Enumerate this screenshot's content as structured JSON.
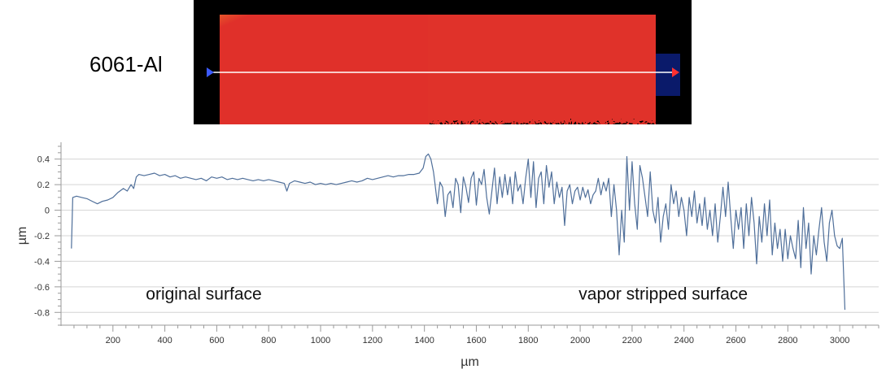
{
  "sample_label": "6061-Al",
  "heatmap": {
    "slice_label": "Sli",
    "colors": {
      "red": "#e0302a",
      "orange": "#f29b28",
      "yellow": "#e9e42e",
      "green": "#31b54a",
      "cyan": "#2fb7c9",
      "blue": "#1d53c8",
      "marker_left": "#3d5bff",
      "marker_right": "#ff3030",
      "slice_line": "#ffffff"
    }
  },
  "chart_data": {
    "type": "line",
    "xlabel": "µm",
    "ylabel": "µm",
    "xlim": [
      0,
      3150
    ],
    "ylim": [
      -0.9,
      0.5
    ],
    "grid": true,
    "line_color": "#4f6f9a",
    "x_ticks": [
      "200",
      "400",
      "600",
      "800",
      "1000",
      "1200",
      "1400",
      "1600",
      "1800",
      "2000",
      "2200",
      "2400",
      "2600",
      "2800",
      "3000"
    ],
    "y_ticks": [
      "0.4",
      "0.2",
      "0",
      "-0.2",
      "-0.4",
      "-0.6",
      "-0.8"
    ],
    "annotations": [
      {
        "text": "original surface",
        "x": 550,
        "y": -0.7
      },
      {
        "text": "vapor stripped surface",
        "x": 2320,
        "y": -0.7
      }
    ],
    "series": [
      {
        "values": [
          [
            40,
            -0.3
          ],
          [
            45,
            0.1
          ],
          [
            60,
            0.11
          ],
          [
            80,
            0.1
          ],
          [
            100,
            0.09
          ],
          [
            120,
            0.07
          ],
          [
            140,
            0.05
          ],
          [
            160,
            0.07
          ],
          [
            180,
            0.08
          ],
          [
            200,
            0.1
          ],
          [
            220,
            0.14
          ],
          [
            240,
            0.17
          ],
          [
            255,
            0.15
          ],
          [
            270,
            0.2
          ],
          [
            280,
            0.17
          ],
          [
            290,
            0.26
          ],
          [
            300,
            0.28
          ],
          [
            320,
            0.27
          ],
          [
            340,
            0.28
          ],
          [
            360,
            0.29
          ],
          [
            380,
            0.27
          ],
          [
            400,
            0.28
          ],
          [
            420,
            0.26
          ],
          [
            440,
            0.27
          ],
          [
            460,
            0.25
          ],
          [
            480,
            0.26
          ],
          [
            500,
            0.25
          ],
          [
            520,
            0.24
          ],
          [
            540,
            0.25
          ],
          [
            560,
            0.23
          ],
          [
            580,
            0.26
          ],
          [
            600,
            0.25
          ],
          [
            620,
            0.26
          ],
          [
            640,
            0.24
          ],
          [
            660,
            0.25
          ],
          [
            680,
            0.24
          ],
          [
            700,
            0.25
          ],
          [
            720,
            0.24
          ],
          [
            740,
            0.23
          ],
          [
            760,
            0.24
          ],
          [
            780,
            0.23
          ],
          [
            800,
            0.24
          ],
          [
            820,
            0.23
          ],
          [
            840,
            0.22
          ],
          [
            860,
            0.21
          ],
          [
            870,
            0.15
          ],
          [
            880,
            0.21
          ],
          [
            900,
            0.23
          ],
          [
            920,
            0.22
          ],
          [
            940,
            0.21
          ],
          [
            960,
            0.22
          ],
          [
            980,
            0.2
          ],
          [
            1000,
            0.21
          ],
          [
            1020,
            0.2
          ],
          [
            1040,
            0.21
          ],
          [
            1060,
            0.2
          ],
          [
            1080,
            0.21
          ],
          [
            1100,
            0.22
          ],
          [
            1120,
            0.23
          ],
          [
            1140,
            0.22
          ],
          [
            1160,
            0.23
          ],
          [
            1180,
            0.25
          ],
          [
            1200,
            0.24
          ],
          [
            1220,
            0.25
          ],
          [
            1240,
            0.26
          ],
          [
            1260,
            0.27
          ],
          [
            1280,
            0.26
          ],
          [
            1300,
            0.27
          ],
          [
            1320,
            0.27
          ],
          [
            1340,
            0.28
          ],
          [
            1360,
            0.28
          ],
          [
            1380,
            0.29
          ],
          [
            1395,
            0.33
          ],
          [
            1405,
            0.42
          ],
          [
            1415,
            0.44
          ],
          [
            1425,
            0.4
          ],
          [
            1435,
            0.3
          ],
          [
            1440,
            0.22
          ],
          [
            1450,
            0.05
          ],
          [
            1460,
            0.22
          ],
          [
            1470,
            0.18
          ],
          [
            1480,
            -0.05
          ],
          [
            1490,
            0.12
          ],
          [
            1500,
            0.15
          ],
          [
            1510,
            0.02
          ],
          [
            1520,
            0.25
          ],
          [
            1530,
            0.2
          ],
          [
            1540,
            -0.02
          ],
          [
            1550,
            0.26
          ],
          [
            1560,
            0.18
          ],
          [
            1570,
            0.06
          ],
          [
            1580,
            0.25
          ],
          [
            1590,
            0.3
          ],
          [
            1600,
            0.04
          ],
          [
            1610,
            0.25
          ],
          [
            1620,
            0.2
          ],
          [
            1630,
            0.32
          ],
          [
            1640,
            0.1
          ],
          [
            1650,
            -0.03
          ],
          [
            1660,
            0.15
          ],
          [
            1670,
            0.33
          ],
          [
            1680,
            0.05
          ],
          [
            1690,
            0.26
          ],
          [
            1700,
            0.1
          ],
          [
            1710,
            0.28
          ],
          [
            1720,
            0.12
          ],
          [
            1730,
            0.26
          ],
          [
            1740,
            0.05
          ],
          [
            1750,
            0.3
          ],
          [
            1760,
            0.15
          ],
          [
            1770,
            0.2
          ],
          [
            1780,
            0.05
          ],
          [
            1790,
            0.25
          ],
          [
            1800,
            0.4
          ],
          [
            1810,
            0.1
          ],
          [
            1820,
            0.38
          ],
          [
            1830,
            0.02
          ],
          [
            1840,
            0.25
          ],
          [
            1850,
            0.3
          ],
          [
            1860,
            0.05
          ],
          [
            1870,
            0.35
          ],
          [
            1880,
            0.18
          ],
          [
            1890,
            0.3
          ],
          [
            1900,
            0.05
          ],
          [
            1910,
            0.22
          ],
          [
            1920,
            0.1
          ],
          [
            1930,
            0.18
          ],
          [
            1940,
            -0.12
          ],
          [
            1950,
            0.15
          ],
          [
            1960,
            0.2
          ],
          [
            1970,
            0.05
          ],
          [
            1980,
            0.15
          ],
          [
            1990,
            0.18
          ],
          [
            2000,
            0.08
          ],
          [
            2010,
            0.18
          ],
          [
            2020,
            0.1
          ],
          [
            2030,
            0.16
          ],
          [
            2040,
            0.05
          ],
          [
            2050,
            0.12
          ],
          [
            2060,
            0.15
          ],
          [
            2070,
            0.25
          ],
          [
            2080,
            0.12
          ],
          [
            2090,
            0.22
          ],
          [
            2100,
            0.15
          ],
          [
            2110,
            0.25
          ],
          [
            2120,
            -0.05
          ],
          [
            2130,
            0.2
          ],
          [
            2140,
            0.0
          ],
          [
            2150,
            -0.35
          ],
          [
            2160,
            0.0
          ],
          [
            2170,
            -0.25
          ],
          [
            2180,
            0.42
          ],
          [
            2190,
            0.0
          ],
          [
            2200,
            0.38
          ],
          [
            2210,
            0.05
          ],
          [
            2220,
            -0.15
          ],
          [
            2230,
            0.35
          ],
          [
            2240,
            0.25
          ],
          [
            2250,
            0.1
          ],
          [
            2260,
            -0.05
          ],
          [
            2270,
            0.3
          ],
          [
            2280,
            0.0
          ],
          [
            2290,
            -0.1
          ],
          [
            2300,
            0.1
          ],
          [
            2310,
            -0.25
          ],
          [
            2320,
            -0.05
          ],
          [
            2330,
            0.05
          ],
          [
            2340,
            -0.15
          ],
          [
            2350,
            0.2
          ],
          [
            2360,
            0.05
          ],
          [
            2370,
            0.15
          ],
          [
            2380,
            -0.05
          ],
          [
            2390,
            0.1
          ],
          [
            2400,
            0.0
          ],
          [
            2410,
            -0.2
          ],
          [
            2420,
            0.1
          ],
          [
            2430,
            -0.05
          ],
          [
            2440,
            0.15
          ],
          [
            2450,
            -0.1
          ],
          [
            2460,
            0.05
          ],
          [
            2470,
            -0.12
          ],
          [
            2480,
            0.1
          ],
          [
            2490,
            -0.15
          ],
          [
            2500,
            0.0
          ],
          [
            2510,
            -0.2
          ],
          [
            2520,
            0.05
          ],
          [
            2530,
            -0.25
          ],
          [
            2540,
            -0.05
          ],
          [
            2550,
            0.18
          ],
          [
            2560,
            -0.05
          ],
          [
            2570,
            0.22
          ],
          [
            2580,
            -0.05
          ],
          [
            2590,
            -0.3
          ],
          [
            2600,
            0.0
          ],
          [
            2610,
            -0.15
          ],
          [
            2620,
            0.02
          ],
          [
            2630,
            -0.3
          ],
          [
            2640,
            0.05
          ],
          [
            2650,
            -0.2
          ],
          [
            2660,
            0.1
          ],
          [
            2670,
            -0.1
          ],
          [
            2680,
            -0.42
          ],
          [
            2690,
            -0.05
          ],
          [
            2700,
            -0.25
          ],
          [
            2710,
            0.05
          ],
          [
            2720,
            -0.2
          ],
          [
            2730,
            0.08
          ],
          [
            2740,
            -0.35
          ],
          [
            2750,
            -0.1
          ],
          [
            2760,
            -0.3
          ],
          [
            2770,
            -0.15
          ],
          [
            2780,
            -0.4
          ],
          [
            2790,
            -0.15
          ],
          [
            2800,
            -0.38
          ],
          [
            2810,
            -0.2
          ],
          [
            2820,
            -0.3
          ],
          [
            2830,
            -0.38
          ],
          [
            2840,
            -0.08
          ],
          [
            2850,
            -0.45
          ],
          [
            2860,
            0.02
          ],
          [
            2870,
            -0.3
          ],
          [
            2880,
            -0.1
          ],
          [
            2890,
            -0.5
          ],
          [
            2900,
            -0.2
          ],
          [
            2910,
            -0.35
          ],
          [
            2920,
            -0.15
          ],
          [
            2930,
            0.02
          ],
          [
            2940,
            -0.25
          ],
          [
            2950,
            -0.4
          ],
          [
            2960,
            -0.1
          ],
          [
            2970,
            0.0
          ],
          [
            2980,
            -0.2
          ],
          [
            2990,
            -0.28
          ],
          [
            3000,
            -0.3
          ],
          [
            3010,
            -0.22
          ],
          [
            3020,
            -0.78
          ]
        ]
      }
    ]
  }
}
